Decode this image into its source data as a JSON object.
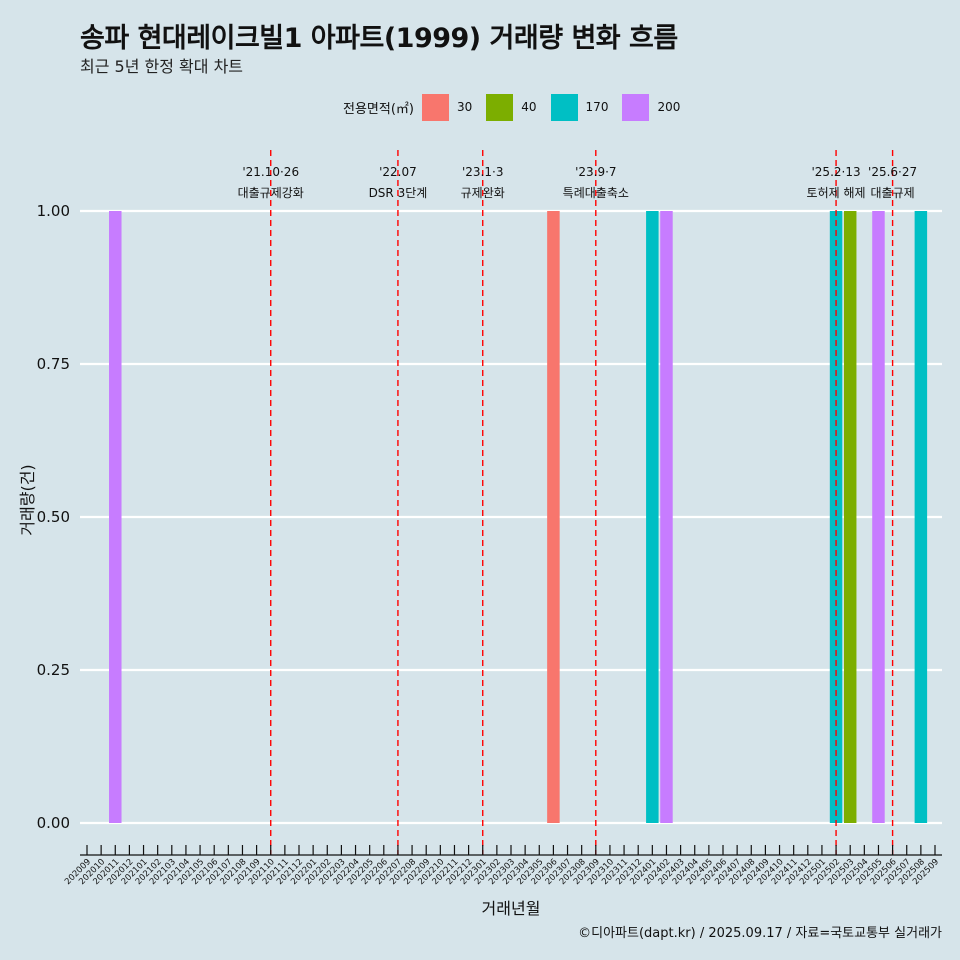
{
  "title": "송파 현대레이크빌1 아파트(1999) 거래량 변화 흐름",
  "subtitle": "최근 5년 한정 확대 차트",
  "caption": "©디아파트(dapt.kr) / 2025.09.17 / 자료=국토교통부 실거래가",
  "legend": {
    "title": "전용면적(㎡)",
    "items": [
      {
        "label": "30",
        "color": "#f8766d"
      },
      {
        "label": "40",
        "color": "#7cae00"
      },
      {
        "label": "170",
        "color": "#00bfc4"
      },
      {
        "label": "200",
        "color": "#c77cff"
      }
    ]
  },
  "chart_data": {
    "type": "bar",
    "title": "송파 현대레이크빌1 아파트(1999) 거래량 변화 흐름",
    "subtitle": "최근 5년 한정 확대 차트",
    "xlabel": "거래년월",
    "ylabel": "거래량(건)",
    "ylim": [
      -0.04,
      1.1
    ],
    "yticks": [
      0.0,
      0.25,
      0.5,
      0.75,
      1.0
    ],
    "ytick_labels": [
      "0.00",
      "0.25",
      "0.50",
      "0.75",
      "1.00"
    ],
    "categories": [
      "202009",
      "202010",
      "202011",
      "202012",
      "202101",
      "202102",
      "202103",
      "202104",
      "202105",
      "202106",
      "202107",
      "202108",
      "202109",
      "202110",
      "202111",
      "202112",
      "202201",
      "202202",
      "202203",
      "202204",
      "202205",
      "202206",
      "202207",
      "202208",
      "202209",
      "202210",
      "202211",
      "202212",
      "202301",
      "202302",
      "202303",
      "202304",
      "202305",
      "202306",
      "202307",
      "202308",
      "202309",
      "202310",
      "202311",
      "202312",
      "202401",
      "202402",
      "202403",
      "202404",
      "202405",
      "202406",
      "202407",
      "202408",
      "202409",
      "202410",
      "202411",
      "202412",
      "202501",
      "202502",
      "202503",
      "202504",
      "202505",
      "202506",
      "202507",
      "202508",
      "202509"
    ],
    "bars": [
      {
        "period": "202011",
        "area": "200",
        "value": 1
      },
      {
        "period": "202306",
        "area": "30",
        "value": 1
      },
      {
        "period": "202401",
        "area": "170",
        "value": 1
      },
      {
        "period": "202402",
        "area": "200",
        "value": 1
      },
      {
        "period": "202502",
        "area": "170",
        "value": 1
      },
      {
        "period": "202503",
        "area": "40",
        "value": 1
      },
      {
        "period": "202505",
        "area": "200",
        "value": 1
      },
      {
        "period": "202508",
        "area": "170",
        "value": 1
      }
    ],
    "series_colors": {
      "30": "#f8766d",
      "40": "#7cae00",
      "170": "#00bfc4",
      "200": "#c77cff"
    },
    "events": [
      {
        "period": "202110",
        "label1": "'21.10·26",
        "label2": "대출규제강화"
      },
      {
        "period": "202207",
        "label1": "'22.07",
        "label2": "DSR 3단계"
      },
      {
        "period": "202301",
        "label1": "'23.1·3",
        "label2": "규제완화"
      },
      {
        "period": "202309",
        "label1": "'23.9·7",
        "label2": "특례대출축소"
      },
      {
        "period": "202502",
        "label1": "'25.2·13",
        "label2": "토허제 해제"
      },
      {
        "period": "202506",
        "label1": "'25.6·27",
        "label2": "대출규제"
      }
    ],
    "event_line_color": "#ff0000"
  }
}
